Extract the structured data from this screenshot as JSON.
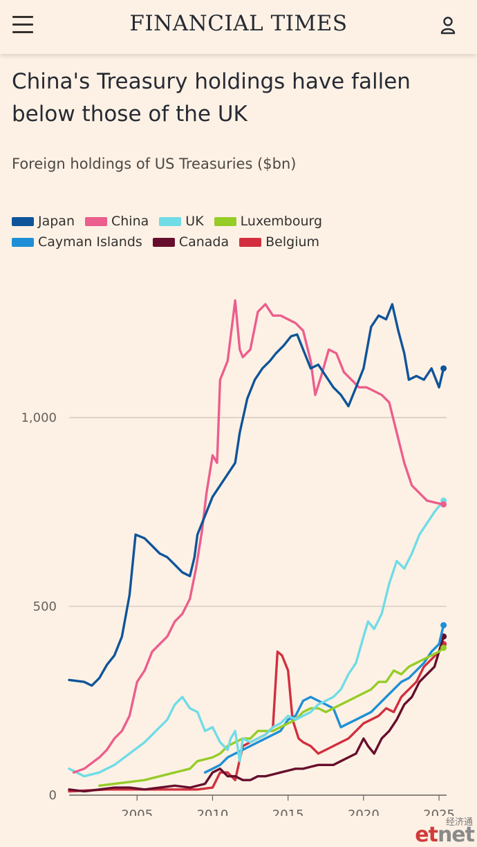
{
  "header": {
    "brand": "FINANCIAL TIMES",
    "menu_icon": "hamburger-menu-icon",
    "user_icon": "user-icon"
  },
  "headline": "China's Treasury holdings have fallen below those of the UK",
  "subtitle": "Foreign holdings of US Treasuries ($bn)",
  "watermark": {
    "cn": "经济通",
    "logo_e": "et",
    "logo_rest": "net"
  },
  "legend": [
    [
      {
        "name": "Japan",
        "color": "#0f5499"
      },
      {
        "name": "China",
        "color": "#eb5e8d"
      },
      {
        "name": "UK",
        "color": "#70dce6"
      },
      {
        "name": "Luxembourg",
        "color": "#96cc28"
      }
    ],
    [
      {
        "name": "Cayman Islands",
        "color": "#1e8fd6"
      },
      {
        "name": "Canada",
        "color": "#660e2c"
      },
      {
        "name": "Belgium",
        "color": "#d12f3f"
      }
    ]
  ],
  "chart_data": {
    "type": "line",
    "title": "China's Treasury holdings have fallen below those of the UK",
    "subtitle": "Foreign holdings of US Treasuries ($bn)",
    "xlim": [
      2000.5,
      2025.5
    ],
    "ylim": [
      0,
      1300
    ],
    "x_ticks": [
      2005,
      2010,
      2015,
      2020,
      2025
    ],
    "x_tick_labels": [
      "2005",
      "2010",
      "2015",
      "2020",
      "2025"
    ],
    "y_ticks": [
      0,
      500,
      1000
    ],
    "y_tick_labels": [
      "0",
      "500",
      "1,000"
    ],
    "grid": "horizontal",
    "legend_position": "top",
    "series": [
      {
        "name": "Japan",
        "color": "#0f5499",
        "x": [
          2000.5,
          2001.5,
          2002.0,
          2002.5,
          2003.0,
          2003.5,
          2004.0,
          2004.5,
          2004.9,
          2005.5,
          2006.0,
          2006.5,
          2007.0,
          2007.5,
          2008.0,
          2008.5,
          2008.8,
          2009.0,
          2009.5,
          2010.0,
          2010.5,
          2011.0,
          2011.5,
          2011.8,
          2012.3,
          2012.8,
          2013.3,
          2013.8,
          2014.2,
          2014.7,
          2015.2,
          2015.6,
          2016.0,
          2016.5,
          2017.0,
          2017.5,
          2018.0,
          2018.5,
          2019.0,
          2019.5,
          2020.0,
          2020.5,
          2021.0,
          2021.5,
          2021.9,
          2022.3,
          2022.7,
          2023.0,
          2023.5,
          2024.0,
          2024.5,
          2025.0,
          2025.3
        ],
        "values": [
          305,
          300,
          290,
          310,
          345,
          370,
          420,
          530,
          690,
          680,
          660,
          640,
          630,
          610,
          590,
          580,
          630,
          690,
          740,
          790,
          820,
          850,
          880,
          960,
          1050,
          1100,
          1130,
          1150,
          1170,
          1190,
          1215,
          1220,
          1180,
          1130,
          1140,
          1110,
          1080,
          1060,
          1030,
          1080,
          1130,
          1240,
          1270,
          1260,
          1300,
          1230,
          1170,
          1100,
          1110,
          1100,
          1130,
          1080,
          1130
        ]
      },
      {
        "name": "China",
        "color": "#eb5e8d",
        "x": [
          2000.8,
          2001.5,
          2002.5,
          2003.0,
          2003.5,
          2004.0,
          2004.5,
          2005.0,
          2005.5,
          2006.0,
          2006.5,
          2007.0,
          2007.5,
          2008.0,
          2008.5,
          2008.9,
          2009.3,
          2009.6,
          2010.0,
          2010.3,
          2010.5,
          2011.0,
          2011.5,
          2011.8,
          2012.0,
          2012.5,
          2013.0,
          2013.5,
          2014.0,
          2014.5,
          2015.0,
          2015.5,
          2016.0,
          2016.5,
          2016.8,
          2017.2,
          2017.7,
          2018.2,
          2018.7,
          2019.2,
          2019.7,
          2020.2,
          2020.7,
          2021.2,
          2021.7,
          2022.2,
          2022.7,
          2023.2,
          2023.7,
          2024.2,
          2024.7,
          2025.3
        ],
        "values": [
          60,
          70,
          100,
          120,
          150,
          170,
          210,
          300,
          330,
          380,
          400,
          420,
          460,
          480,
          520,
          600,
          700,
          800,
          900,
          880,
          1100,
          1150,
          1310,
          1180,
          1160,
          1180,
          1280,
          1300,
          1270,
          1270,
          1260,
          1250,
          1230,
          1150,
          1060,
          1110,
          1180,
          1170,
          1120,
          1100,
          1080,
          1080,
          1070,
          1060,
          1040,
          960,
          880,
          820,
          800,
          780,
          775,
          770
        ]
      },
      {
        "name": "UK",
        "color": "#70dce6",
        "x": [
          2000.5,
          2001.5,
          2002.5,
          2003.5,
          2004.5,
          2005.5,
          2006.5,
          2007.0,
          2007.5,
          2008.0,
          2008.5,
          2009.0,
          2009.5,
          2010.0,
          2010.5,
          2011.0,
          2011.2,
          2011.5,
          2011.8,
          2012.0,
          2012.5,
          2013.0,
          2013.5,
          2014.0,
          2014.5,
          2015.0,
          2015.5,
          2016.0,
          2016.5,
          2017.0,
          2017.5,
          2018.0,
          2018.5,
          2019.0,
          2019.5,
          2020.0,
          2020.3,
          2020.7,
          2021.2,
          2021.7,
          2022.2,
          2022.7,
          2023.2,
          2023.7,
          2024.2,
          2024.7,
          2025.3
        ],
        "values": [
          70,
          50,
          60,
          80,
          110,
          140,
          180,
          200,
          240,
          260,
          230,
          220,
          170,
          180,
          140,
          120,
          150,
          170,
          90,
          150,
          140,
          150,
          160,
          180,
          190,
          210,
          200,
          210,
          220,
          240,
          250,
          260,
          280,
          320,
          350,
          420,
          460,
          440,
          480,
          560,
          620,
          600,
          640,
          690,
          720,
          750,
          780
        ]
      },
      {
        "name": "Luxembourg",
        "color": "#96cc28",
        "x": [
          2002.5,
          2003.5,
          2004.5,
          2005.5,
          2006.5,
          2007.5,
          2008.5,
          2009.0,
          2009.5,
          2010.0,
          2010.5,
          2011.0,
          2011.5,
          2012.0,
          2012.5,
          2013.0,
          2013.5,
          2014.0,
          2014.5,
          2015.0,
          2015.5,
          2016.0,
          2016.5,
          2017.0,
          2017.5,
          2018.0,
          2018.5,
          2019.0,
          2019.5,
          2020.0,
          2020.5,
          2021.0,
          2021.5,
          2022.0,
          2022.5,
          2023.0,
          2023.5,
          2024.0,
          2024.5,
          2025.0,
          2025.3
        ],
        "values": [
          25,
          30,
          35,
          40,
          50,
          60,
          70,
          90,
          95,
          100,
          110,
          130,
          140,
          150,
          150,
          170,
          170,
          170,
          180,
          190,
          200,
          220,
          230,
          230,
          220,
          230,
          240,
          250,
          260,
          270,
          280,
          300,
          300,
          330,
          320,
          340,
          350,
          360,
          370,
          380,
          390
        ]
      },
      {
        "name": "Cayman Islands",
        "color": "#1e8fd6",
        "x": [
          2009.5,
          2010.0,
          2010.5,
          2011.0,
          2011.5,
          2012.0,
          2012.5,
          2013.0,
          2013.5,
          2014.0,
          2014.5,
          2015.0,
          2015.5,
          2016.0,
          2016.5,
          2017.0,
          2017.5,
          2018.0,
          2018.5,
          2019.0,
          2019.5,
          2020.0,
          2020.5,
          2021.0,
          2021.5,
          2022.0,
          2022.5,
          2023.0,
          2023.5,
          2024.0,
          2024.5,
          2025.0,
          2025.3
        ],
        "values": [
          60,
          70,
          80,
          100,
          110,
          120,
          130,
          140,
          150,
          160,
          170,
          200,
          210,
          250,
          260,
          250,
          240,
          230,
          180,
          190,
          200,
          210,
          220,
          240,
          260,
          280,
          300,
          310,
          330,
          350,
          380,
          400,
          450
        ]
      },
      {
        "name": "Canada",
        "color": "#660e2c",
        "x": [
          2000.5,
          2001.5,
          2002.5,
          2003.5,
          2004.5,
          2005.5,
          2006.5,
          2007.5,
          2008.5,
          2009.5,
          2010.0,
          2010.5,
          2011.0,
          2011.5,
          2012.0,
          2012.5,
          2013.0,
          2013.5,
          2014.0,
          2014.5,
          2015.0,
          2015.5,
          2016.0,
          2016.5,
          2017.0,
          2017.5,
          2018.0,
          2018.5,
          2019.0,
          2019.5,
          2020.0,
          2020.3,
          2020.7,
          2021.2,
          2021.7,
          2022.2,
          2022.7,
          2023.2,
          2023.7,
          2024.2,
          2024.7,
          2025.3
        ],
        "values": [
          15,
          10,
          15,
          20,
          20,
          15,
          20,
          25,
          20,
          30,
          60,
          70,
          50,
          50,
          40,
          40,
          50,
          50,
          55,
          60,
          65,
          70,
          70,
          75,
          80,
          80,
          80,
          90,
          100,
          110,
          150,
          130,
          110,
          150,
          170,
          200,
          240,
          260,
          300,
          320,
          340,
          420
        ]
      },
      {
        "name": "Belgium",
        "color": "#d12f3f",
        "x": [
          2000.5,
          2003.0,
          2006.0,
          2009.0,
          2010.0,
          2010.5,
          2011.0,
          2011.5,
          2012.0,
          2012.5,
          2013.0,
          2013.5,
          2014.0,
          2014.3,
          2014.6,
          2015.0,
          2015.3,
          2015.7,
          2016.0,
          2016.5,
          2017.0,
          2017.5,
          2018.0,
          2018.5,
          2019.0,
          2019.5,
          2020.0,
          2020.5,
          2021.0,
          2021.5,
          2022.0,
          2022.5,
          2023.0,
          2023.5,
          2024.0,
          2024.5,
          2025.0,
          2025.3
        ],
        "values": [
          10,
          15,
          15,
          15,
          20,
          60,
          60,
          40,
          130,
          140,
          150,
          160,
          180,
          380,
          370,
          330,
          200,
          150,
          140,
          130,
          110,
          120,
          130,
          140,
          150,
          170,
          190,
          200,
          210,
          230,
          220,
          260,
          280,
          300,
          340,
          360,
          380,
          400
        ]
      }
    ]
  }
}
